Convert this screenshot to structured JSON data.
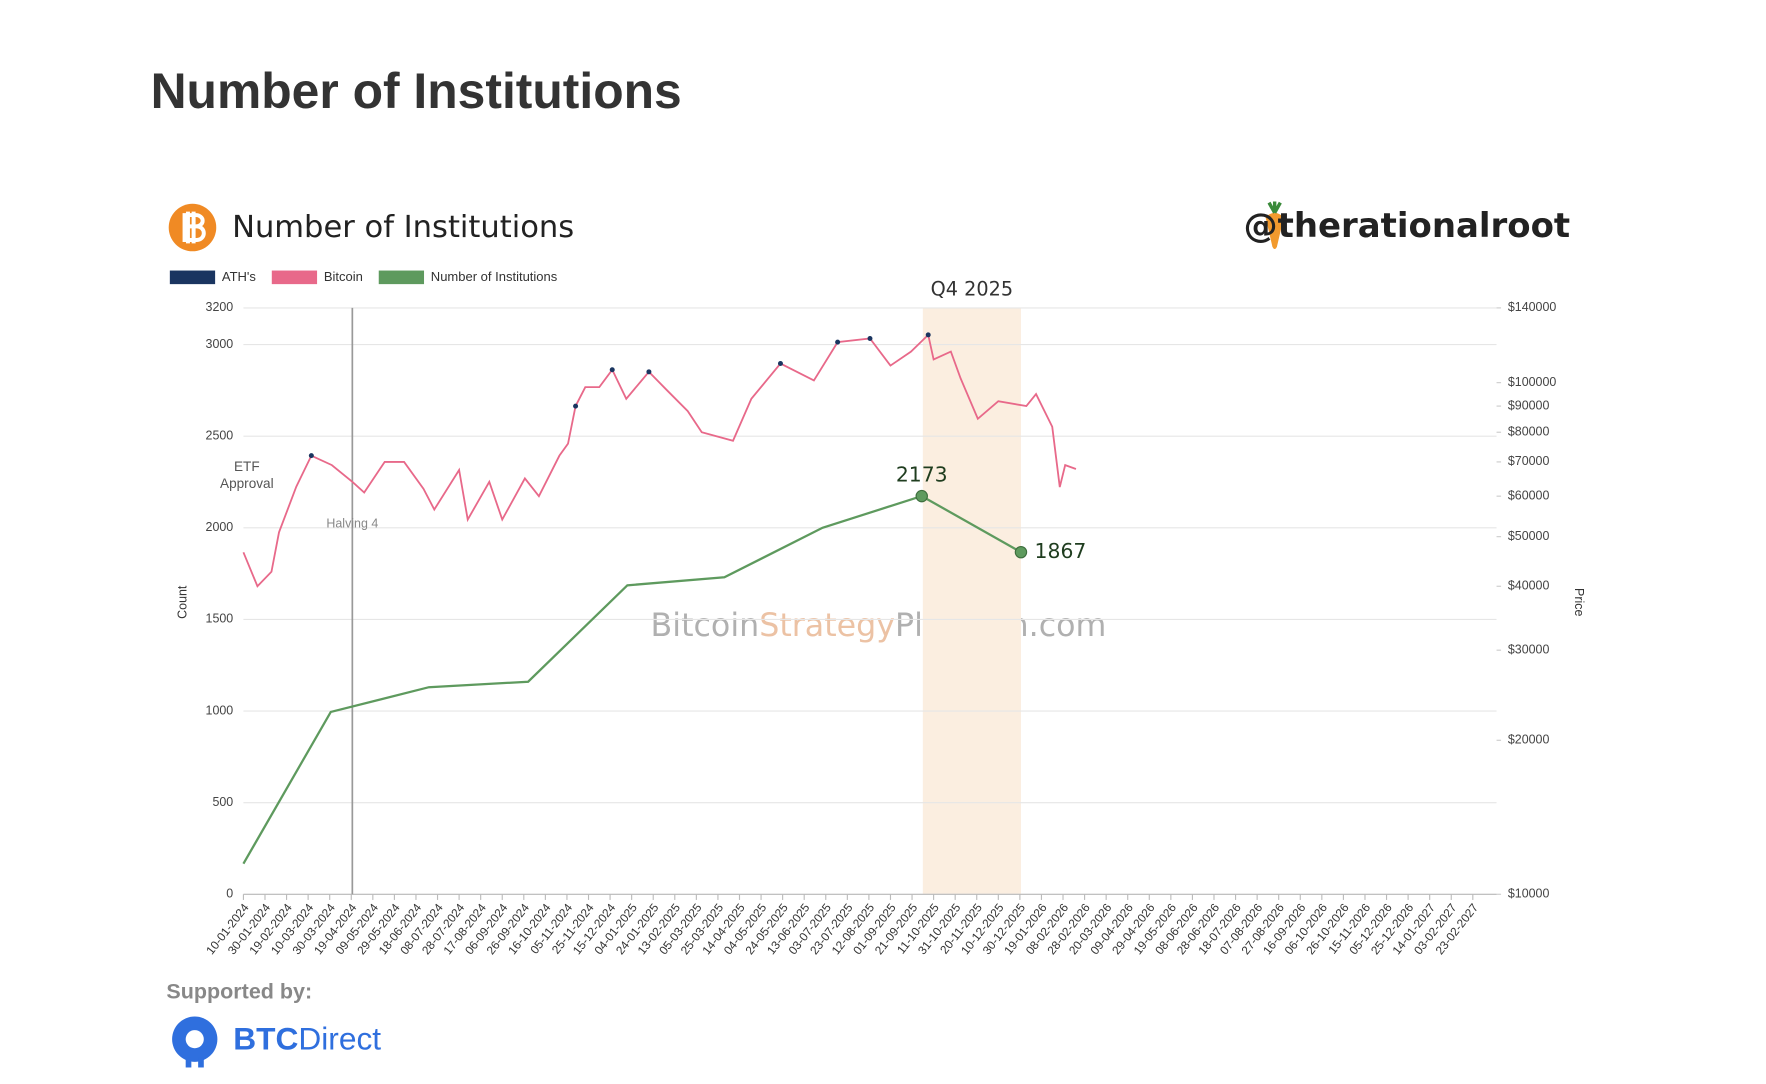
{
  "page_title": "Number of Institutions",
  "handle": "@therationalroot",
  "watermark": [
    "Bitcoin",
    "Strategy",
    "Platform.com"
  ],
  "supported_by": "Supported by:",
  "sponsor": [
    "BTC",
    "Direct"
  ],
  "chart_data": {
    "type": "line",
    "title": "Number of Institutions",
    "legend": "top-left",
    "grid": true,
    "y_label": "Count",
    "y2_label": "Price",
    "y2_log": true,
    "xlim": [
      "10-01-2024",
      "17-03-2027"
    ],
    "xticks": [
      "10-01-2024",
      "30-01-2024",
      "19-02-2024",
      "10-03-2024",
      "30-03-2024",
      "19-04-2024",
      "09-05-2024",
      "29-05-2024",
      "18-06-2024",
      "08-07-2024",
      "28-07-2024",
      "17-08-2024",
      "06-09-2024",
      "26-09-2024",
      "16-10-2024",
      "05-11-2024",
      "25-11-2024",
      "15-12-2024",
      "04-01-2025",
      "24-01-2025",
      "13-02-2025",
      "05-03-2025",
      "25-03-2025",
      "14-04-2025",
      "04-05-2025",
      "24-05-2025",
      "13-06-2025",
      "03-07-2025",
      "23-07-2025",
      "12-08-2025",
      "01-09-2025",
      "21-09-2025",
      "11-10-2025",
      "31-10-2025",
      "20-11-2025",
      "10-12-2025",
      "30-12-2025",
      "19-01-2026",
      "08-02-2026",
      "28-02-2026",
      "20-03-2026",
      "09-04-2026",
      "29-04-2026",
      "19-05-2026",
      "08-06-2026",
      "28-06-2026",
      "18-07-2026",
      "07-08-2026",
      "27-08-2026",
      "16-09-2026",
      "06-10-2026",
      "26-10-2026",
      "15-11-2026",
      "05-12-2026",
      "25-12-2026",
      "14-01-2027",
      "03-02-2027",
      "23-02-2027"
    ],
    "ylim": [
      0,
      3200
    ],
    "yticks": [
      0,
      500,
      1000,
      1500,
      2000,
      2500,
      3000,
      3200
    ],
    "y2lim": [
      10000,
      140000
    ],
    "y2ticks": [
      {
        "value": 10000,
        "label": "$10000"
      },
      {
        "value": 20000,
        "label": "$20000"
      },
      {
        "value": 30000,
        "label": "$30000"
      },
      {
        "value": 40000,
        "label": "$40000"
      },
      {
        "value": 50000,
        "label": "$50000"
      },
      {
        "value": 60000,
        "label": "$60000"
      },
      {
        "value": 70000,
        "label": "$70000"
      },
      {
        "value": 80000,
        "label": "$80000"
      },
      {
        "value": 90000,
        "label": "$90000"
      },
      {
        "value": 100000,
        "label": "$100000"
      },
      {
        "value": 140000,
        "label": "$140000"
      }
    ],
    "series": [
      {
        "name": "ATH's",
        "color": "#1a3560",
        "kind": "points",
        "axis": "y2",
        "x": [
          "13-03-2024",
          "13-11-2024",
          "17-12-2024",
          "20-01-2025",
          "22-05-2025",
          "14-07-2025",
          "13-08-2025",
          "06-10-2025"
        ],
        "values": [
          72000,
          90000,
          106000,
          105000,
          109000,
          120000,
          122000,
          124000
        ]
      },
      {
        "name": "Bitcoin",
        "color": "#e8698a",
        "kind": "line",
        "axis": "y2",
        "x": [
          "10-01-2024",
          "23-01-2024",
          "05-02-2024",
          "12-02-2024",
          "28-02-2024",
          "13-03-2024",
          "01-04-2024",
          "20-04-2024",
          "01-05-2024",
          "20-05-2024",
          "07-06-2024",
          "25-06-2024",
          "05-07-2024",
          "28-07-2024",
          "05-08-2024",
          "25-08-2024",
          "06-09-2024",
          "27-09-2024",
          "10-10-2024",
          "29-10-2024",
          "06-11-2024",
          "13-11-2024",
          "22-11-2024",
          "05-12-2024",
          "17-12-2024",
          "30-12-2024",
          "20-01-2025",
          "05-02-2025",
          "25-02-2025",
          "10-03-2025",
          "08-04-2025",
          "25-04-2025",
          "22-05-2025",
          "22-06-2025",
          "14-07-2025",
          "13-08-2025",
          "01-09-2025",
          "20-09-2025",
          "06-10-2025",
          "11-10-2025",
          "27-10-2025",
          "05-11-2025",
          "21-11-2025",
          "10-12-2025",
          "05-01-2026",
          "14-01-2026",
          "29-01-2026",
          "05-02-2026",
          "10-02-2026",
          "20-02-2026"
        ],
        "values": [
          46600,
          40000,
          42700,
          51000,
          62600,
          72000,
          69000,
          64000,
          61000,
          70000,
          70000,
          62000,
          56500,
          67500,
          54000,
          64000,
          54000,
          65000,
          60000,
          72000,
          76000,
          90000,
          98000,
          98000,
          106000,
          93000,
          105000,
          97000,
          88000,
          80000,
          77000,
          93000,
          109000,
          101000,
          120000,
          122000,
          108000,
          115000,
          124000,
          111000,
          115000,
          102000,
          85000,
          92000,
          90000,
          95000,
          82000,
          62500,
          69000,
          67800
        ]
      },
      {
        "name": "Number of Institutions",
        "color": "#5e9a5e",
        "kind": "line",
        "axis": "y",
        "x": [
          "10-01-2024",
          "31-03-2024",
          "30-06-2024",
          "30-09-2024",
          "31-12-2024",
          "31-03-2025",
          "30-06-2025",
          "30-09-2025",
          "31-12-2025"
        ],
        "values": [
          167,
          995,
          1130,
          1160,
          1686,
          1730,
          2000,
          2173,
          1867
        ],
        "value_labels": [
          null,
          null,
          null,
          null,
          null,
          null,
          null,
          "2173",
          "1867"
        ]
      }
    ],
    "annotations": {
      "etf": {
        "lines": [
          "ETF",
          "Approval"
        ],
        "x": "10-01-2024"
      },
      "halving": {
        "label": "Halving 4",
        "x": "20-04-2024"
      },
      "band": {
        "label": "Q4 2025",
        "x": [
          "01-10-2025",
          "31-12-2025"
        ],
        "color": "#fbeee0"
      }
    }
  }
}
